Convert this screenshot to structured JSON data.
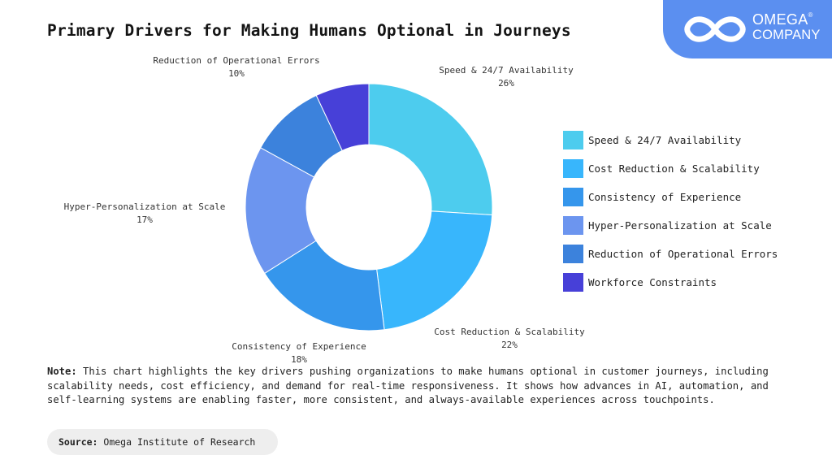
{
  "title": "Primary Drivers for Making Humans Optional in Journeys",
  "logo": {
    "line1": "OMEGA",
    "mark": "®",
    "line2": "COMPANY",
    "icon": "infinity-icon"
  },
  "chart_data": {
    "type": "pie",
    "donut": true,
    "categories": [
      "Speed & 24/7 Availability",
      "Cost Reduction & Scalability",
      "Consistency of Experience",
      "Hyper-Personalization at Scale",
      "Reduction of Operational Errors",
      "Workforce Constraints"
    ],
    "values": [
      26,
      22,
      18,
      17,
      10,
      7
    ],
    "colors": [
      "#4dccee",
      "#38b6fc",
      "#3596ec",
      "#6c95ef",
      "#3c82dc",
      "#4740d8"
    ],
    "slice_labels": [
      {
        "name": "Speed & 24/7 Availability",
        "value": "26%"
      },
      {
        "name": "Cost Reduction & Scalability",
        "value": "22%"
      },
      {
        "name": "Consistency of Experience",
        "value": "18%"
      },
      {
        "name": "Hyper-Personalization at Scale",
        "value": "17%"
      },
      {
        "name": "Reduction of Operational Errors",
        "value": "10%"
      }
    ],
    "legend_position": "right"
  },
  "note": {
    "label": "Note:",
    "text": "This chart highlights the key drivers pushing organizations to make humans optional in customer journeys, including scalability needs, cost efficiency, and demand for real-time responsiveness. It shows how advances in AI, automation, and self-learning systems are enabling faster, more consistent, and always-available experiences across touchpoints."
  },
  "source": {
    "label": "Source:",
    "text": "Omega Institute of Research"
  }
}
